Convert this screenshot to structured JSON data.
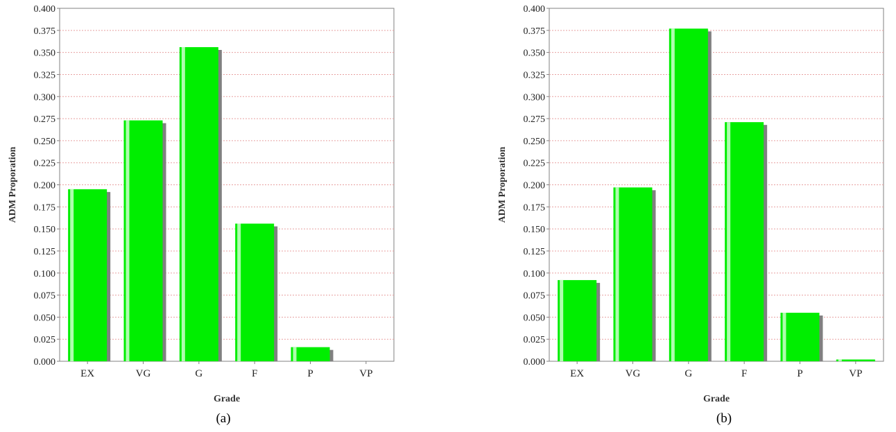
{
  "colors": {
    "bar": "#00ee00",
    "bar_highlight": "#ccffcc",
    "bar_shadow": "#808080",
    "grid": "#e8a0a0",
    "axis": "#808080"
  },
  "chart_data": [
    {
      "type": "bar",
      "caption": "(a)",
      "xlabel": "Grade",
      "ylabel": "ADM Proporation",
      "categories": [
        "EX",
        "VG",
        "G",
        "F",
        "P",
        "VP"
      ],
      "values": [
        0.195,
        0.273,
        0.356,
        0.156,
        0.016,
        0.0
      ],
      "ylim": [
        0,
        0.4
      ],
      "yticks": [
        "0.000",
        "0.025",
        "0.050",
        "0.075",
        "0.100",
        "0.125",
        "0.150",
        "0.175",
        "0.200",
        "0.225",
        "0.250",
        "0.275",
        "0.300",
        "0.325",
        "0.350",
        "0.375",
        "0.400"
      ],
      "grid": true
    },
    {
      "type": "bar",
      "caption": "(b)",
      "xlabel": "Grade",
      "ylabel": "ADM Proporation",
      "categories": [
        "EX",
        "VG",
        "G",
        "F",
        "P",
        "VP"
      ],
      "values": [
        0.092,
        0.197,
        0.377,
        0.271,
        0.055,
        0.002
      ],
      "ylim": [
        0,
        0.4
      ],
      "yticks": [
        "0.000",
        "0.025",
        "0.050",
        "0.075",
        "0.100",
        "0.125",
        "0.150",
        "0.175",
        "0.200",
        "0.225",
        "0.250",
        "0.275",
        "0.300",
        "0.325",
        "0.350",
        "0.375",
        "0.400"
      ],
      "grid": true
    }
  ]
}
